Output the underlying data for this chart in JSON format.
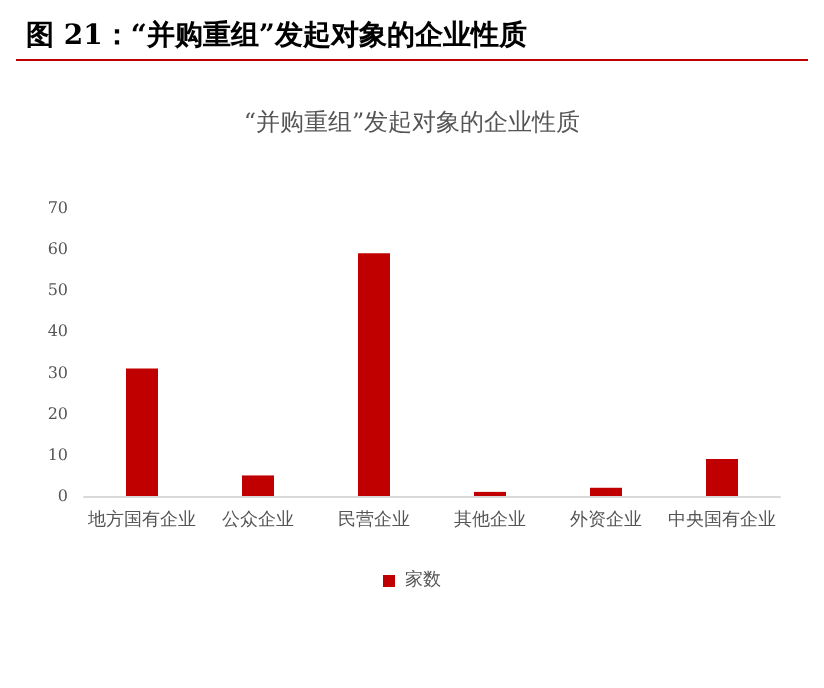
{
  "chart_data": {
    "type": "bar",
    "title": "图 21：“并购重组”发起对象的企业性质",
    "subtitle": "“并购重组”发起对象的企业性质",
    "categories": [
      "地方国有企业",
      "公众企业",
      "民营企业",
      "其他企业",
      "外资企业",
      "中央国有企业"
    ],
    "series": [
      {
        "name": "家数",
        "color": "#c00000",
        "values": [
          31,
          5,
          59,
          1,
          2,
          9
        ]
      }
    ],
    "ylim": [
      0,
      70
    ],
    "yticks": [
      0,
      10,
      20,
      30,
      40,
      50,
      60,
      70
    ],
    "grid": false,
    "legend": "bottom"
  }
}
